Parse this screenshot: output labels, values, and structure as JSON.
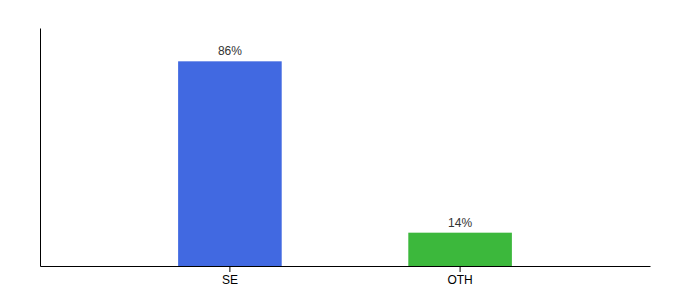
{
  "chart_data": {
    "type": "bar",
    "categories": [
      "SE",
      "OTH"
    ],
    "values": [
      86,
      14
    ],
    "colors": [
      "#4169e1",
      "#3cb83c"
    ],
    "ylim": [
      0,
      100
    ],
    "data_labels": true,
    "value_labels": [
      "86%",
      "14%"
    ],
    "tick_labels": "x"
  }
}
